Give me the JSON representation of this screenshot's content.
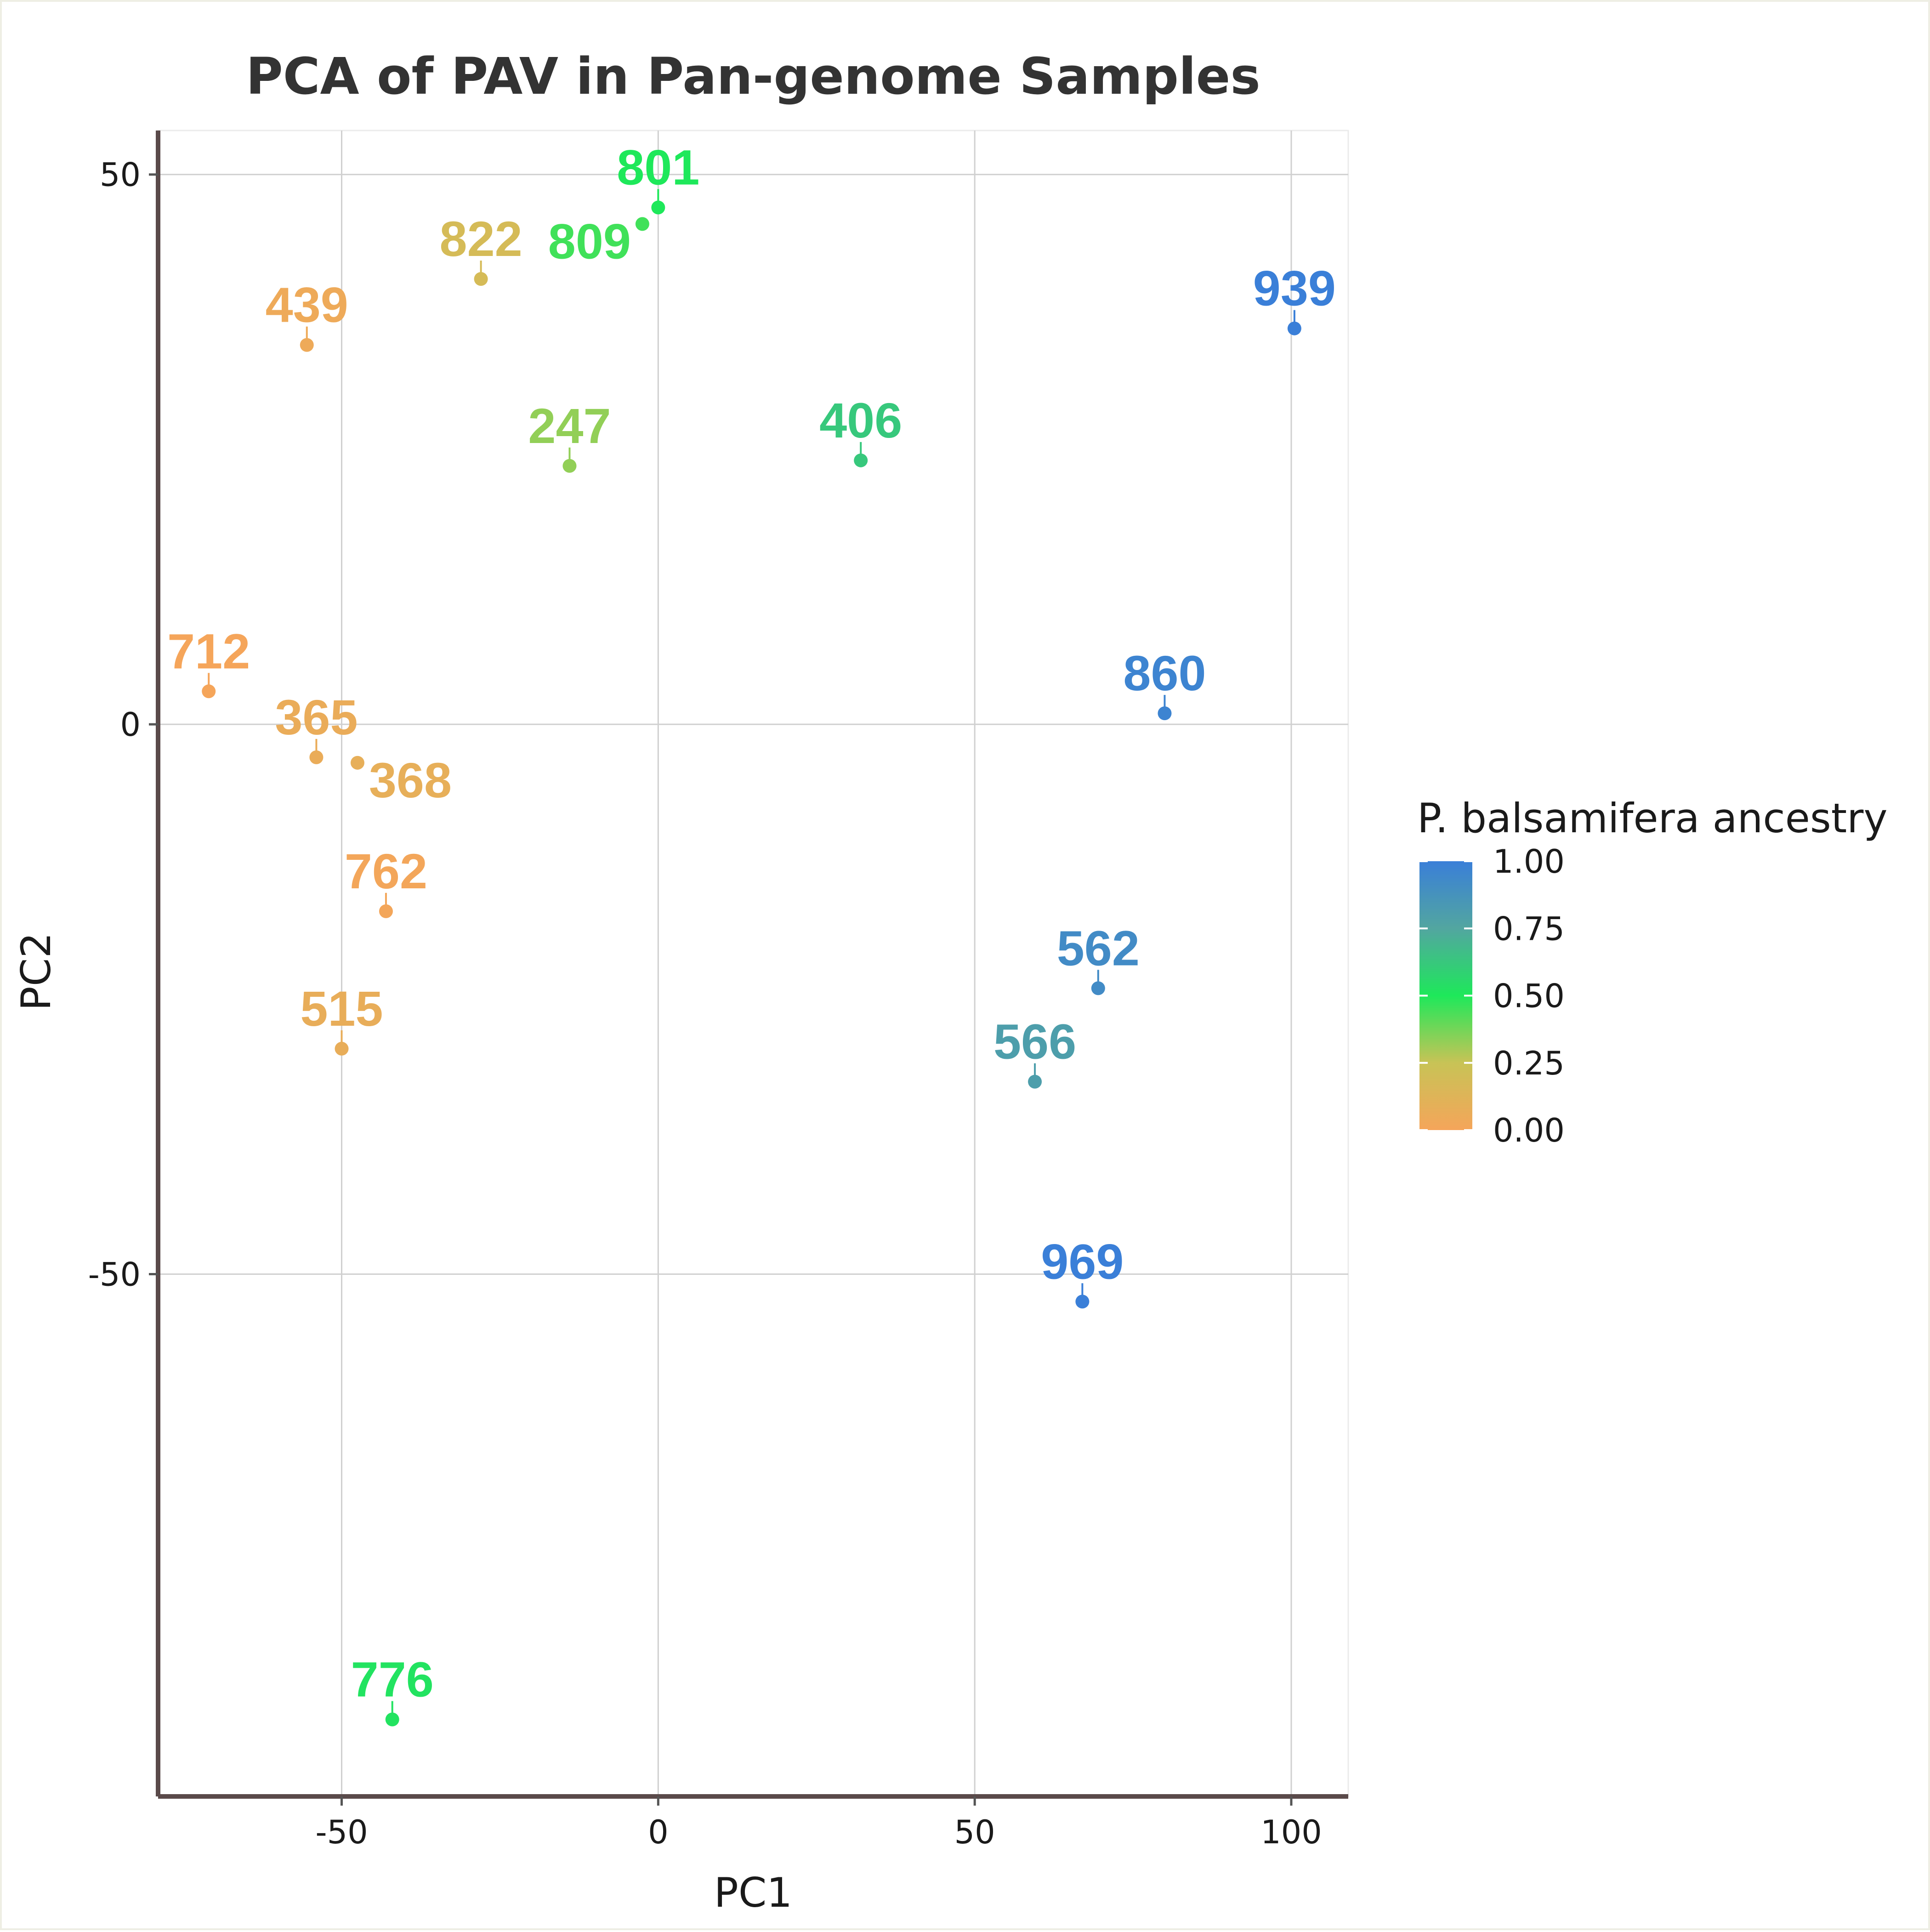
{
  "chart_data": {
    "type": "scatter",
    "title": "PCA of PAV in Pan-genome Samples",
    "xlabel": "PC1",
    "ylabel": "PC2",
    "xlim": [
      -79,
      109
    ],
    "ylim": [
      -97.5,
      54
    ],
    "xticks": [
      -50,
      0,
      50,
      100
    ],
    "yticks": [
      -50,
      0,
      50
    ],
    "xtick_labels": [
      "-50",
      "0",
      "50",
      "100"
    ],
    "ytick_labels": [
      "-50",
      "0",
      "50"
    ],
    "grid": true,
    "legend": {
      "title": "P. balsamifera ancestry",
      "position": "right",
      "ticks": [
        "1.00",
        "0.75",
        "0.50",
        "0.25",
        "0.00"
      ],
      "tick_values": [
        1.0,
        0.75,
        0.5,
        0.25,
        0.0
      ],
      "gradient_colors": [
        "#f5a55a",
        "#c8c356",
        "#1ee85a",
        "#52a6a0",
        "#3a7fd8"
      ]
    },
    "points": [
      {
        "label": "801",
        "x": 0,
        "y": 47,
        "ancestry": 0.5
      },
      {
        "label": "809",
        "x": -2.5,
        "y": 45.5,
        "ancestry": 0.45
      },
      {
        "label": "822",
        "x": -28,
        "y": 40.5,
        "ancestry": 0.18
      },
      {
        "label": "439",
        "x": -55.5,
        "y": 34.5,
        "ancestry": 0.04
      },
      {
        "label": "939",
        "x": 100.5,
        "y": 36,
        "ancestry": 1.0
      },
      {
        "label": "247",
        "x": -14,
        "y": 23.5,
        "ancestry": 0.33
      },
      {
        "label": "406",
        "x": 32,
        "y": 24,
        "ancestry": 0.62
      },
      {
        "label": "712",
        "x": -71,
        "y": 3,
        "ancestry": 0.0
      },
      {
        "label": "860",
        "x": 80,
        "y": 1,
        "ancestry": 0.97
      },
      {
        "label": "365",
        "x": -54,
        "y": -3,
        "ancestry": 0.06
      },
      {
        "label": "368",
        "x": -47.5,
        "y": -3.5,
        "ancestry": 0.08
      },
      {
        "label": "762",
        "x": -43,
        "y": -17,
        "ancestry": 0.01
      },
      {
        "label": "562",
        "x": 69.5,
        "y": -24,
        "ancestry": 0.92
      },
      {
        "label": "515",
        "x": -50,
        "y": -29.5,
        "ancestry": 0.07
      },
      {
        "label": "566",
        "x": 59.5,
        "y": -32.5,
        "ancestry": 0.8
      },
      {
        "label": "969",
        "x": 67,
        "y": -52.5,
        "ancestry": 1.0
      },
      {
        "label": "776",
        "x": -42,
        "y": -90.5,
        "ancestry": 0.52
      }
    ]
  }
}
